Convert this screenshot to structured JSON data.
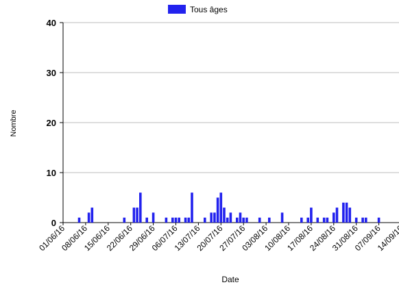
{
  "chart_data": {
    "type": "bar",
    "legend": "Tous âges",
    "color": "#2222ee",
    "x_label": "Date",
    "y_label": "Nombre",
    "categories": [
      "01/06/16",
      null,
      null,
      null,
      null,
      null,
      null,
      "08/06/16",
      null,
      null,
      null,
      null,
      null,
      null,
      "15/06/16",
      null,
      null,
      null,
      null,
      null,
      null,
      "22/06/16",
      null,
      null,
      null,
      null,
      null,
      null,
      "29/06/16",
      null,
      null,
      null,
      null,
      null,
      null,
      "06/07/16",
      null,
      null,
      null,
      null,
      null,
      null,
      "13/07/16",
      null,
      null,
      null,
      null,
      null,
      null,
      "20/07/16",
      null,
      null,
      null,
      null,
      null,
      null,
      "27/07/16",
      null,
      null,
      null,
      null,
      null,
      null,
      "03/08/16",
      null,
      null,
      null,
      null,
      null,
      null,
      "10/08/16",
      null,
      null,
      null,
      null,
      null,
      null,
      "17/08/16",
      null,
      null,
      null,
      null,
      null,
      null,
      "24/08/16",
      null,
      null,
      null,
      null,
      null,
      null,
      "31/08/16",
      null,
      null,
      null,
      null,
      null,
      null,
      "07/09/16",
      null,
      null,
      null,
      null,
      null,
      null,
      "14/09/16"
    ],
    "values": [
      0,
      0,
      0,
      0,
      0,
      1,
      0,
      0,
      2,
      3,
      0,
      0,
      0,
      0,
      0,
      0,
      0,
      0,
      0,
      1,
      0,
      0,
      3,
      3,
      6,
      0,
      1,
      0,
      2,
      0,
      0,
      0,
      1,
      0,
      1,
      1,
      1,
      0,
      1,
      1,
      6,
      0,
      0,
      0,
      1,
      0,
      2,
      2,
      5,
      6,
      3,
      1,
      2,
      0,
      1,
      2,
      1,
      1,
      0,
      0,
      0,
      1,
      0,
      0,
      1,
      0,
      0,
      0,
      2,
      0,
      0,
      0,
      0,
      0,
      1,
      0,
      1,
      3,
      0,
      1,
      0,
      1,
      1,
      0,
      2,
      3,
      0,
      4,
      4,
      3,
      0,
      1,
      0,
      1,
      1,
      0,
      0,
      0,
      1,
      0,
      0,
      0,
      0,
      0,
      0,
      0
    ],
    "ylim": [
      0,
      40
    ],
    "yticks": [
      0,
      10,
      20,
      30,
      40
    ],
    "grid": true
  }
}
